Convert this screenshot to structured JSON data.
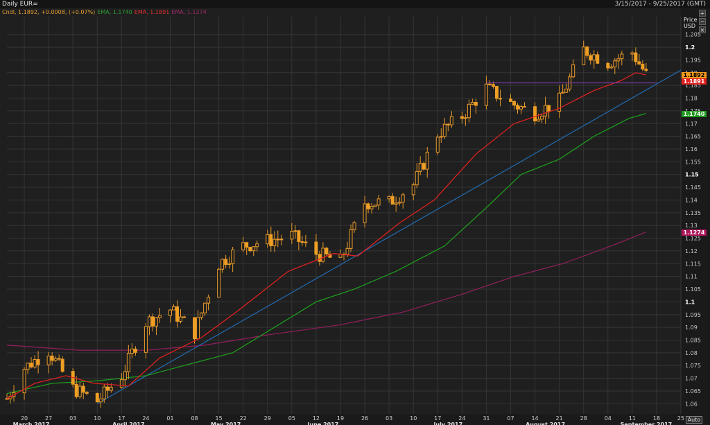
{
  "header": {
    "title": "Daily EUR=",
    "date_range": "3/15/2017 - 9/25/2017 (GMT)"
  },
  "legend": [
    {
      "text": "Cndl, 1.1892, +0.0008, (+0.07%)",
      "color": "#e8a030"
    },
    {
      "text": "EMA, 1.1740",
      "color": "#2f9a2f"
    },
    {
      "text": "EMA, 1.1891",
      "color": "#e03030"
    },
    {
      "text": "EMA, 1.1274",
      "color": "#9a2a6a"
    }
  ],
  "axis": {
    "price_label": "Price",
    "currency_label": "USD",
    "auto_label": "Auto"
  },
  "price_tags": [
    {
      "value": "1.1892",
      "bg": "#f29a1e",
      "fg": "#000000",
      "price": 1.1892
    },
    {
      "value": "1.1891",
      "bg": "#e02020",
      "fg": "#ffffff",
      "price": 1.1867
    },
    {
      "value": "1.1740",
      "bg": "#1f9a1f",
      "fg": "#ffffff",
      "price": 1.174
    },
    {
      "value": "1.1274",
      "bg": "#b0145a",
      "fg": "#ffffff",
      "price": 1.1274
    }
  ],
  "colors": {
    "background": "#1f1f1f",
    "grid": "#353535",
    "candle_up": "#e89a2a",
    "candle_down": "#f0a020",
    "ema_short": "#e02020",
    "ema_mid": "#1e9a1e",
    "ema_long": "#8a1f5a",
    "trendline": "#2266aa",
    "horizontal_line": "#7a3aa0"
  },
  "chart_data": {
    "type": "candlestick",
    "ylim": [
      1.056,
      1.212
    ],
    "y_ticks": [
      "1.06",
      "1.065",
      "1.07",
      "1.075",
      "1.08",
      "1.085",
      "1.09",
      "1.095",
      "1.1",
      "1.105",
      "1.11",
      "1.115",
      "1.12",
      "1.125",
      "1.13",
      "1.135",
      "1.14",
      "1.145",
      "1.15",
      "1.155",
      "1.16",
      "1.165",
      "1.17",
      "1.175",
      "1.18",
      "1.185",
      "1.19",
      "1.195",
      "1.2",
      "1.205"
    ],
    "x_day_ticks": [
      {
        "label": "20",
        "date": "2017-03-20"
      },
      {
        "label": "27",
        "date": "2017-03-27"
      },
      {
        "label": "03",
        "date": "2017-04-03"
      },
      {
        "label": "10",
        "date": "2017-04-10"
      },
      {
        "label": "17",
        "date": "2017-04-17"
      },
      {
        "label": "24",
        "date": "2017-04-24"
      },
      {
        "label": "01",
        "date": "2017-05-01"
      },
      {
        "label": "08",
        "date": "2017-05-08"
      },
      {
        "label": "15",
        "date": "2017-05-15"
      },
      {
        "label": "22",
        "date": "2017-05-22"
      },
      {
        "label": "29",
        "date": "2017-05-29"
      },
      {
        "label": "05",
        "date": "2017-06-05"
      },
      {
        "label": "12",
        "date": "2017-06-12"
      },
      {
        "label": "19",
        "date": "2017-06-19"
      },
      {
        "label": "26",
        "date": "2017-06-26"
      },
      {
        "label": "03",
        "date": "2017-07-03"
      },
      {
        "label": "10",
        "date": "2017-07-10"
      },
      {
        "label": "17",
        "date": "2017-07-17"
      },
      {
        "label": "24",
        "date": "2017-07-24"
      },
      {
        "label": "31",
        "date": "2017-07-31"
      },
      {
        "label": "07",
        "date": "2017-08-07"
      },
      {
        "label": "14",
        "date": "2017-08-14"
      },
      {
        "label": "21",
        "date": "2017-08-21"
      },
      {
        "label": "28",
        "date": "2017-08-28"
      },
      {
        "label": "04",
        "date": "2017-09-04"
      },
      {
        "label": "11",
        "date": "2017-09-11"
      },
      {
        "label": "18",
        "date": "2017-09-18"
      },
      {
        "label": "25",
        "date": "2017-09-25"
      }
    ],
    "x_month_labels": [
      {
        "label": "March 2017",
        "date": "2017-03-22"
      },
      {
        "label": "April 2017",
        "date": "2017-04-19"
      },
      {
        "label": "May 2017",
        "date": "2017-05-17"
      },
      {
        "label": "June 2017",
        "date": "2017-06-14"
      },
      {
        "label": "July 2017",
        "date": "2017-07-20"
      },
      {
        "label": "August 2017",
        "date": "2017-08-17"
      },
      {
        "label": "September 2017",
        "date": "2017-09-15"
      }
    ],
    "weekly_closes": [
      {
        "date": "2017-03-15",
        "close": 1.062
      },
      {
        "date": "2017-03-20",
        "close": 1.074
      },
      {
        "date": "2017-03-27",
        "close": 1.081
      },
      {
        "date": "2017-04-03",
        "close": 1.066
      },
      {
        "date": "2017-04-10",
        "close": 1.061
      },
      {
        "date": "2017-04-17",
        "close": 1.071
      },
      {
        "date": "2017-04-24",
        "close": 1.092
      },
      {
        "date": "2017-05-01",
        "close": 1.097
      },
      {
        "date": "2017-05-08",
        "close": 1.088
      },
      {
        "date": "2017-05-15",
        "close": 1.115
      },
      {
        "date": "2017-05-22",
        "close": 1.122
      },
      {
        "date": "2017-05-29",
        "close": 1.124
      },
      {
        "date": "2017-06-05",
        "close": 1.126
      },
      {
        "date": "2017-06-12",
        "close": 1.119
      },
      {
        "date": "2017-06-19",
        "close": 1.116
      },
      {
        "date": "2017-06-26",
        "close": 1.139
      },
      {
        "date": "2017-07-03",
        "close": 1.139
      },
      {
        "date": "2017-07-10",
        "close": 1.146
      },
      {
        "date": "2017-07-17",
        "close": 1.166
      },
      {
        "date": "2017-07-24",
        "close": 1.173
      },
      {
        "date": "2017-07-31",
        "close": 1.184
      },
      {
        "date": "2017-08-07",
        "close": 1.178
      },
      {
        "date": "2017-08-14",
        "close": 1.174
      },
      {
        "date": "2017-08-21",
        "close": 1.179
      },
      {
        "date": "2017-08-28",
        "close": 1.199
      },
      {
        "date": "2017-09-04",
        "close": 1.194
      },
      {
        "date": "2017-09-11",
        "close": 1.198
      },
      {
        "date": "2017-09-15",
        "close": 1.1892
      }
    ],
    "ema_short": [
      [
        1.062,
        "2017-03-15"
      ],
      [
        1.068,
        "2017-03-23"
      ],
      [
        1.071,
        "2017-04-01"
      ],
      [
        1.068,
        "2017-04-09"
      ],
      [
        1.067,
        "2017-04-19"
      ],
      [
        1.078,
        "2017-04-28"
      ],
      [
        1.086,
        "2017-05-10"
      ],
      [
        1.096,
        "2017-05-20"
      ],
      [
        1.112,
        "2017-06-04"
      ],
      [
        1.119,
        "2017-06-17"
      ],
      [
        1.118,
        "2017-06-24"
      ],
      [
        1.131,
        "2017-07-06"
      ],
      [
        1.14,
        "2017-07-16"
      ],
      [
        1.158,
        "2017-07-28"
      ],
      [
        1.17,
        "2017-08-08"
      ],
      [
        1.176,
        "2017-08-21"
      ],
      [
        1.183,
        "2017-08-31"
      ],
      [
        1.187,
        "2017-09-08"
      ],
      [
        1.19,
        "2017-09-12"
      ],
      [
        1.1891,
        "2017-09-15"
      ]
    ],
    "ema_mid": [
      [
        1.064,
        "2017-03-15"
      ],
      [
        1.068,
        "2017-03-28"
      ],
      [
        1.069,
        "2017-04-10"
      ],
      [
        1.071,
        "2017-04-24"
      ],
      [
        1.075,
        "2017-05-05"
      ],
      [
        1.08,
        "2017-05-19"
      ],
      [
        1.09,
        "2017-05-31"
      ],
      [
        1.1,
        "2017-06-12"
      ],
      [
        1.105,
        "2017-06-23"
      ],
      [
        1.112,
        "2017-07-05"
      ],
      [
        1.122,
        "2017-07-19"
      ],
      [
        1.137,
        "2017-07-31"
      ],
      [
        1.15,
        "2017-08-10"
      ],
      [
        1.156,
        "2017-08-21"
      ],
      [
        1.165,
        "2017-08-31"
      ],
      [
        1.172,
        "2017-09-10"
      ],
      [
        1.174,
        "2017-09-15"
      ]
    ],
    "ema_long": [
      [
        1.083,
        "2017-03-15"
      ],
      [
        1.081,
        "2017-04-05"
      ],
      [
        1.081,
        "2017-04-24"
      ],
      [
        1.083,
        "2017-05-11"
      ],
      [
        1.087,
        "2017-05-29"
      ],
      [
        1.091,
        "2017-06-19"
      ],
      [
        1.096,
        "2017-07-07"
      ],
      [
        1.103,
        "2017-07-24"
      ],
      [
        1.11,
        "2017-08-08"
      ],
      [
        1.115,
        "2017-08-22"
      ],
      [
        1.122,
        "2017-09-05"
      ],
      [
        1.1274,
        "2017-09-15"
      ]
    ],
    "trendline": {
      "start": [
        "2017-04-10",
        1.06
      ],
      "end": [
        "2017-09-25",
        1.191
      ]
    },
    "horizontal_line": {
      "price": 1.186,
      "from": "2017-07-31",
      "to": "2017-09-18"
    }
  }
}
